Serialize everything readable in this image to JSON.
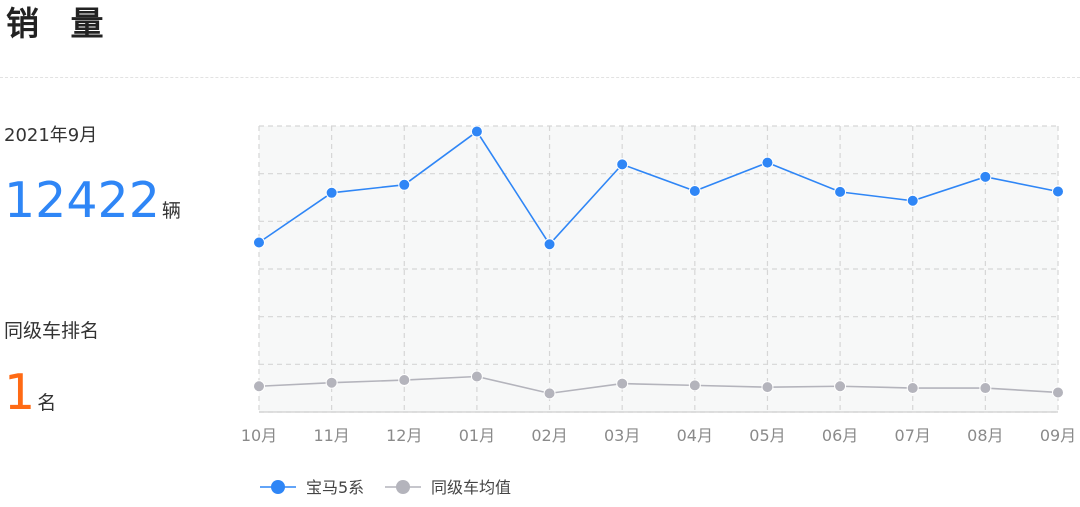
{
  "header": {
    "title": "销 量"
  },
  "summary": {
    "period": "2021年9月",
    "sales_value": "12422",
    "sales_unit": "辆",
    "rank_label": "同级车排名",
    "rank_value": "1",
    "rank_unit": "名"
  },
  "colors": {
    "primary": "#2f86f6",
    "secondary": "#b4b4bc",
    "rank": "#ff6a14",
    "grid": "#d6d6d6",
    "plot_bg": "#f7f8f8"
  },
  "chart_data": {
    "type": "line",
    "categories": [
      "10月",
      "11月",
      "12月",
      "01月",
      "02月",
      "03月",
      "04月",
      "05月",
      "06月",
      "07月",
      "08月",
      "09月"
    ],
    "series": [
      {
        "name": "宝马5系",
        "color": "#2f86f6",
        "values": [
          9550,
          12350,
          12800,
          15800,
          9450,
          13950,
          12450,
          14050,
          12400,
          11900,
          13250,
          12422
        ]
      },
      {
        "name": "同级车均值",
        "color": "#b4b4bc",
        "values": [
          1450,
          1650,
          1800,
          2000,
          1050,
          1600,
          1500,
          1400,
          1450,
          1350,
          1350,
          1100
        ]
      }
    ],
    "ylim": [
      0,
      16000
    ],
    "grid": true,
    "y_axis_labels_shown": false,
    "legend_position": "bottom-center"
  }
}
